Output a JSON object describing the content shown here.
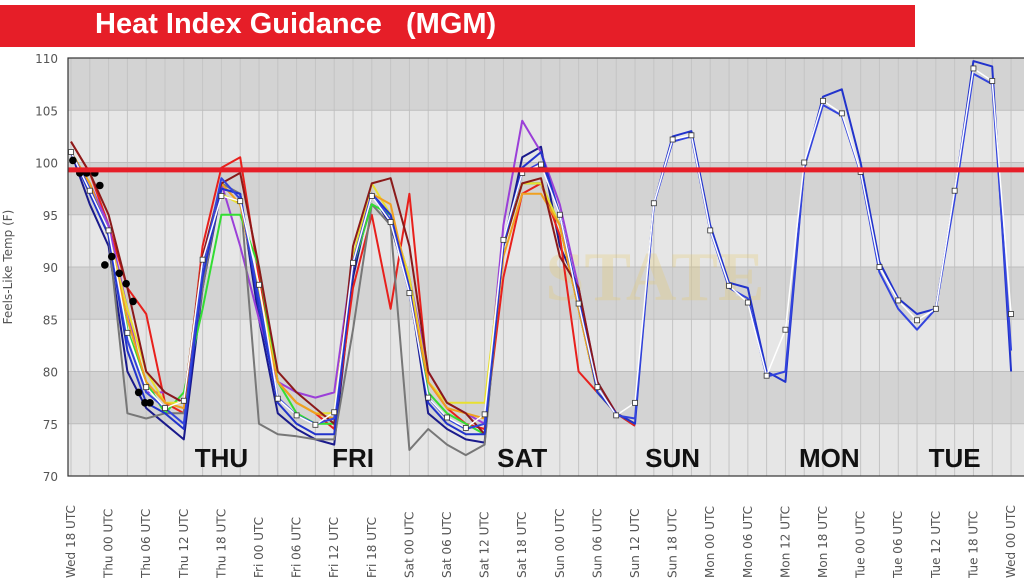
{
  "chart_data": {
    "type": "line",
    "title": "Heat Index Guidance   (MGM)",
    "ylabel": "Feels-Like Temp (F)",
    "xlabel": "",
    "ylim": [
      70,
      110
    ],
    "yticks": [
      70,
      75,
      80,
      85,
      90,
      95,
      100,
      105,
      110
    ],
    "x_tick_labels": [
      "Wed 18 UTC",
      "Thu 00 UTC",
      "Thu 06 UTC",
      "Thu 12 UTC",
      "Thu 18 UTC",
      "Fri 00 UTC",
      "Fri 06 UTC",
      "Fri 12 UTC",
      "Fri 18 UTC",
      "Sat 00 UTC",
      "Sat 06 UTC",
      "Sat 12 UTC",
      "Sat 18 UTC",
      "Sun 00 UTC",
      "Sun 06 UTC",
      "Sun 12 UTC",
      "Sun 18 UTC",
      "Mon 00 UTC",
      "Mon 06 UTC",
      "Mon 12 UTC",
      "Mon 18 UTC",
      "Tue 00 UTC",
      "Tue 06 UTC",
      "Tue 12 UTC",
      "Tue 18 UTC",
      "Wed 00 UTC"
    ],
    "x_units": "hours since Wed 18 UTC",
    "grid": true,
    "threshold": {
      "value": 99.3,
      "color": "#e61e28"
    },
    "day_labels": [
      {
        "text": "THU",
        "hour": 24
      },
      {
        "text": "FRI",
        "hour": 45
      },
      {
        "text": "SAT",
        "hour": 72
      },
      {
        "text": "SUN",
        "hour": 96
      },
      {
        "text": "MON",
        "hour": 121
      },
      {
        "text": "TUE",
        "hour": 141
      }
    ],
    "watermark": "STATE",
    "series": [
      {
        "name": "model-navy",
        "color": "#1a1a8c",
        "step_hours": 3,
        "values": [
          101,
          96,
          92,
          80,
          76.5,
          75,
          73.5,
          88,
          97.5,
          97,
          85,
          76,
          74.5,
          73.5,
          73,
          89,
          97,
          94,
          88,
          76,
          74.5,
          73.5,
          73.2,
          92,
          100.5,
          101.5,
          92,
          88,
          78,
          76,
          74.8
        ]
      },
      {
        "name": "model-red",
        "color": "#e8201c",
        "step_hours": 3,
        "values": [
          102,
          99,
          94,
          88,
          85.5,
          77,
          76,
          92,
          99.5,
          100.5,
          89,
          79,
          77,
          76,
          74.5,
          88,
          95,
          86,
          97,
          79,
          76.5,
          75,
          74.5,
          89,
          97,
          98,
          93,
          80,
          78,
          76,
          74.8
        ]
      },
      {
        "name": "model-purple",
        "color": "#9b3fd8",
        "step_hours": 3,
        "values": [
          101,
          98,
          94,
          86,
          78,
          78,
          77,
          90,
          98,
          92,
          85,
          79,
          78,
          77.5,
          78,
          91,
          97,
          95,
          89,
          80,
          77,
          76,
          75,
          94,
          104,
          101,
          96,
          88,
          79,
          76,
          75
        ]
      },
      {
        "name": "model-gray",
        "color": "#777777",
        "step_hours": 3,
        "values": [
          101,
          98,
          93,
          76,
          75.5,
          76,
          76,
          88,
          98,
          97,
          75,
          74,
          73.8,
          73.5,
          73.5,
          84,
          96,
          94,
          72.5,
          74.5,
          73,
          72,
          73,
          92,
          98,
          98,
          94,
          86,
          78,
          76,
          75
        ]
      },
      {
        "name": "model-green",
        "color": "#33dd33",
        "step_hours": 3,
        "values": [
          101,
          98,
          93,
          84,
          79,
          76,
          78,
          86,
          95,
          95,
          90,
          79,
          76,
          75,
          75,
          90,
          96,
          95,
          88,
          78,
          76,
          75,
          74,
          92,
          98,
          98,
          94,
          86,
          78,
          76,
          75
        ]
      },
      {
        "name": "model-yellow",
        "color": "#e8e030",
        "step_hours": 3,
        "values": [
          101,
          98,
          93,
          86,
          80,
          77,
          77,
          91,
          97,
          96,
          88,
          79,
          77,
          76,
          76,
          91,
          98,
          95,
          89,
          79,
          77,
          77,
          77,
          92,
          98,
          98,
          94,
          86,
          78,
          76,
          75
        ]
      },
      {
        "name": "model-orange",
        "color": "#f0a020",
        "step_hours": 3,
        "values": [
          101,
          98,
          93,
          85,
          79,
          77,
          76.5,
          90,
          98,
          96,
          87,
          79,
          77,
          76,
          75.5,
          90,
          97,
          96,
          88,
          79,
          76.5,
          76,
          75.5,
          91,
          97,
          97,
          94,
          86,
          78,
          76,
          75
        ]
      },
      {
        "name": "model-darkred",
        "color": "#8b1a1a",
        "step_hours": 3,
        "values": [
          102,
          99,
          95,
          88,
          80,
          78,
          77,
          91,
          98,
          99,
          90,
          80,
          78,
          76.5,
          75,
          92,
          98,
          98.5,
          92,
          80,
          77,
          76,
          74,
          92,
          98,
          98.5,
          91,
          88,
          79,
          76,
          75
        ]
      },
      {
        "name": "model-blue-a",
        "color": "#2233cc",
        "step_hours": 3,
        "values": [
          101,
          97,
          93,
          82,
          77,
          76,
          74.5,
          89,
          97.5,
          97,
          86,
          77,
          75,
          74,
          74,
          90,
          97,
          95,
          88,
          77,
          75,
          74,
          74,
          92,
          99.5,
          101,
          95,
          87,
          78,
          76,
          75,
          96,
          102.5,
          103,
          94,
          88.5,
          88,
          80,
          79,
          99.5,
          106.3,
          107,
          100,
          90.5,
          87,
          85.5,
          86,
          97,
          109.7,
          109.2,
          80
        ]
      },
      {
        "name": "model-blue-b",
        "color": "#3344dd",
        "step_hours": 3,
        "values": [
          101,
          97.5,
          93.5,
          83,
          78,
          76.5,
          75,
          90,
          98.5,
          96.5,
          87,
          77.5,
          75.8,
          75,
          75.5,
          90.5,
          97,
          94.5,
          87.5,
          77.5,
          75.5,
          74.5,
          75,
          92.5,
          99,
          100,
          95,
          86.5,
          78.5,
          75.8,
          75.5,
          96,
          102,
          102.5,
          93.5,
          88,
          87,
          79.5,
          80,
          99.5,
          105.5,
          104.5,
          99,
          89.5,
          86,
          84,
          86,
          96.5,
          108.5,
          107.5,
          82
        ]
      },
      {
        "name": "guidance-mean",
        "color": "#ffffff",
        "marker": "square",
        "step_hours": 3,
        "values": [
          101,
          97.3,
          93.5,
          83.7,
          78.5,
          76.5,
          77.2,
          90.7,
          96.8,
          96.3,
          88.3,
          77.4,
          75.8,
          74.9,
          76.1,
          90.4,
          96.8,
          94.3,
          87.5,
          77.5,
          75.6,
          74.6,
          75.9,
          92.6,
          99.0,
          99.8,
          95.0,
          86.5,
          78.5,
          75.8,
          77.0,
          96.1,
          102.2,
          102.6,
          93.5,
          88.2,
          86.6,
          79.6,
          84.0,
          100.0,
          105.9,
          104.7,
          99.1,
          90.0,
          86.8,
          84.9,
          86.0,
          97.3,
          109.0,
          107.8,
          85.5
        ]
      }
    ],
    "observed": {
      "name": "observed",
      "color": "#000000",
      "points": [
        [
          0.3,
          100.2
        ],
        [
          1.4,
          99
        ],
        [
          2.5,
          99
        ],
        [
          3.8,
          99
        ],
        [
          4.6,
          97.8
        ],
        [
          5.4,
          90.2
        ],
        [
          6.5,
          91
        ],
        [
          7.7,
          89.4
        ],
        [
          8.8,
          88.4
        ],
        [
          9.9,
          86.7
        ],
        [
          10.8,
          78
        ],
        [
          11.8,
          77
        ],
        [
          12.6,
          77
        ]
      ]
    }
  }
}
